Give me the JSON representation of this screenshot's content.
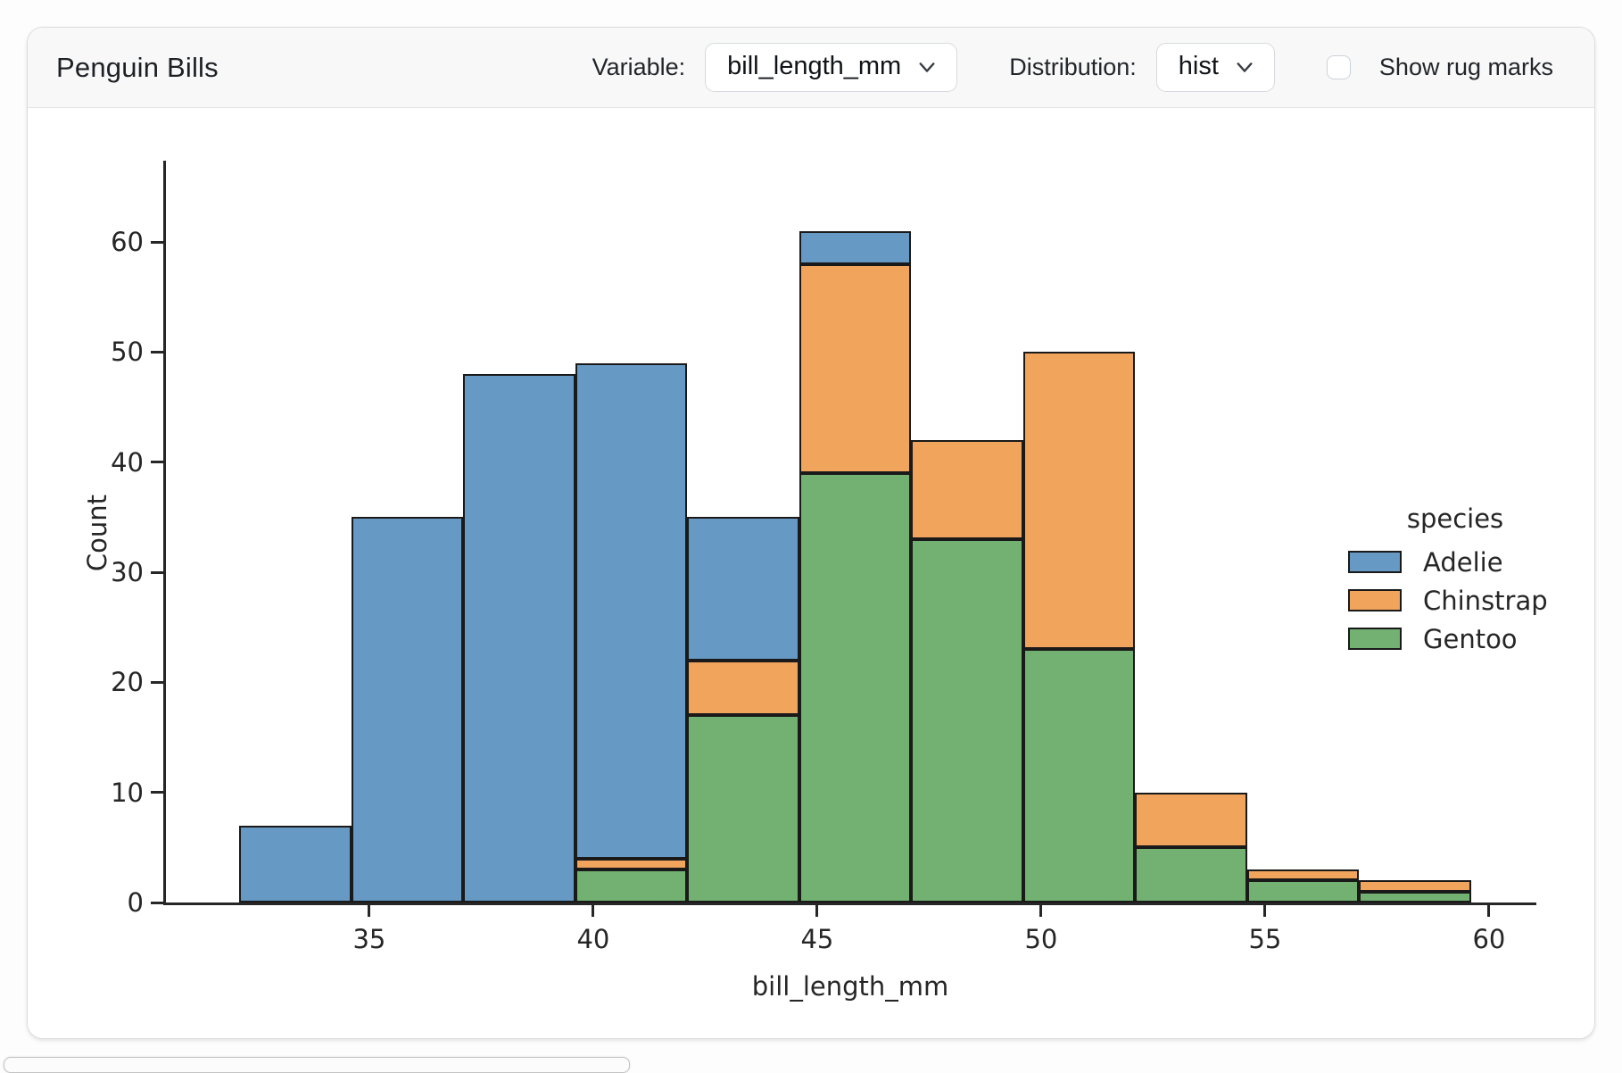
{
  "header": {
    "title": "Penguin Bills",
    "variable_label": "Variable:",
    "variable_value": "bill_length_mm",
    "distribution_label": "Distribution:",
    "distribution_value": "hist",
    "rug_label": "Show rug marks",
    "rug_checked": false
  },
  "chart_data": {
    "type": "bar",
    "subtype": "stacked_histogram",
    "title": "",
    "xlabel": "bill_length_mm",
    "ylabel": "Count",
    "bin_edges": [
      32.1,
      34.6,
      37.1,
      39.6,
      42.1,
      44.6,
      47.1,
      49.6,
      52.1,
      54.6,
      57.1,
      59.6
    ],
    "series": [
      {
        "name": "Adelie",
        "color": "#6699c4",
        "values": [
          7,
          35,
          48,
          45,
          13,
          3,
          0,
          0,
          0,
          0,
          0
        ]
      },
      {
        "name": "Chinstrap",
        "color": "#f0a45c",
        "values": [
          0,
          0,
          0,
          1,
          5,
          19,
          9,
          27,
          5,
          1,
          1
        ]
      },
      {
        "name": "Gentoo",
        "color": "#72b172",
        "values": [
          0,
          0,
          0,
          3,
          17,
          39,
          33,
          23,
          5,
          2,
          1
        ]
      }
    ],
    "stack_order_bottom_to_top": [
      "Gentoo",
      "Chinstrap",
      "Adelie"
    ],
    "bin_totals": [
      7,
      35,
      48,
      49,
      35,
      61,
      42,
      50,
      10,
      3,
      2
    ],
    "x_ticks": [
      35,
      40,
      45,
      50,
      55,
      60
    ],
    "y_ticks": [
      0,
      10,
      20,
      30,
      40,
      50,
      60
    ],
    "xlim": [
      30.46,
      61.05
    ],
    "ylim": [
      0,
      64
    ],
    "grid": false,
    "bar_edge_color": "#1a1a1a",
    "legend": {
      "title": "species",
      "entries": [
        "Adelie",
        "Chinstrap",
        "Gentoo"
      ],
      "position": "right"
    }
  }
}
